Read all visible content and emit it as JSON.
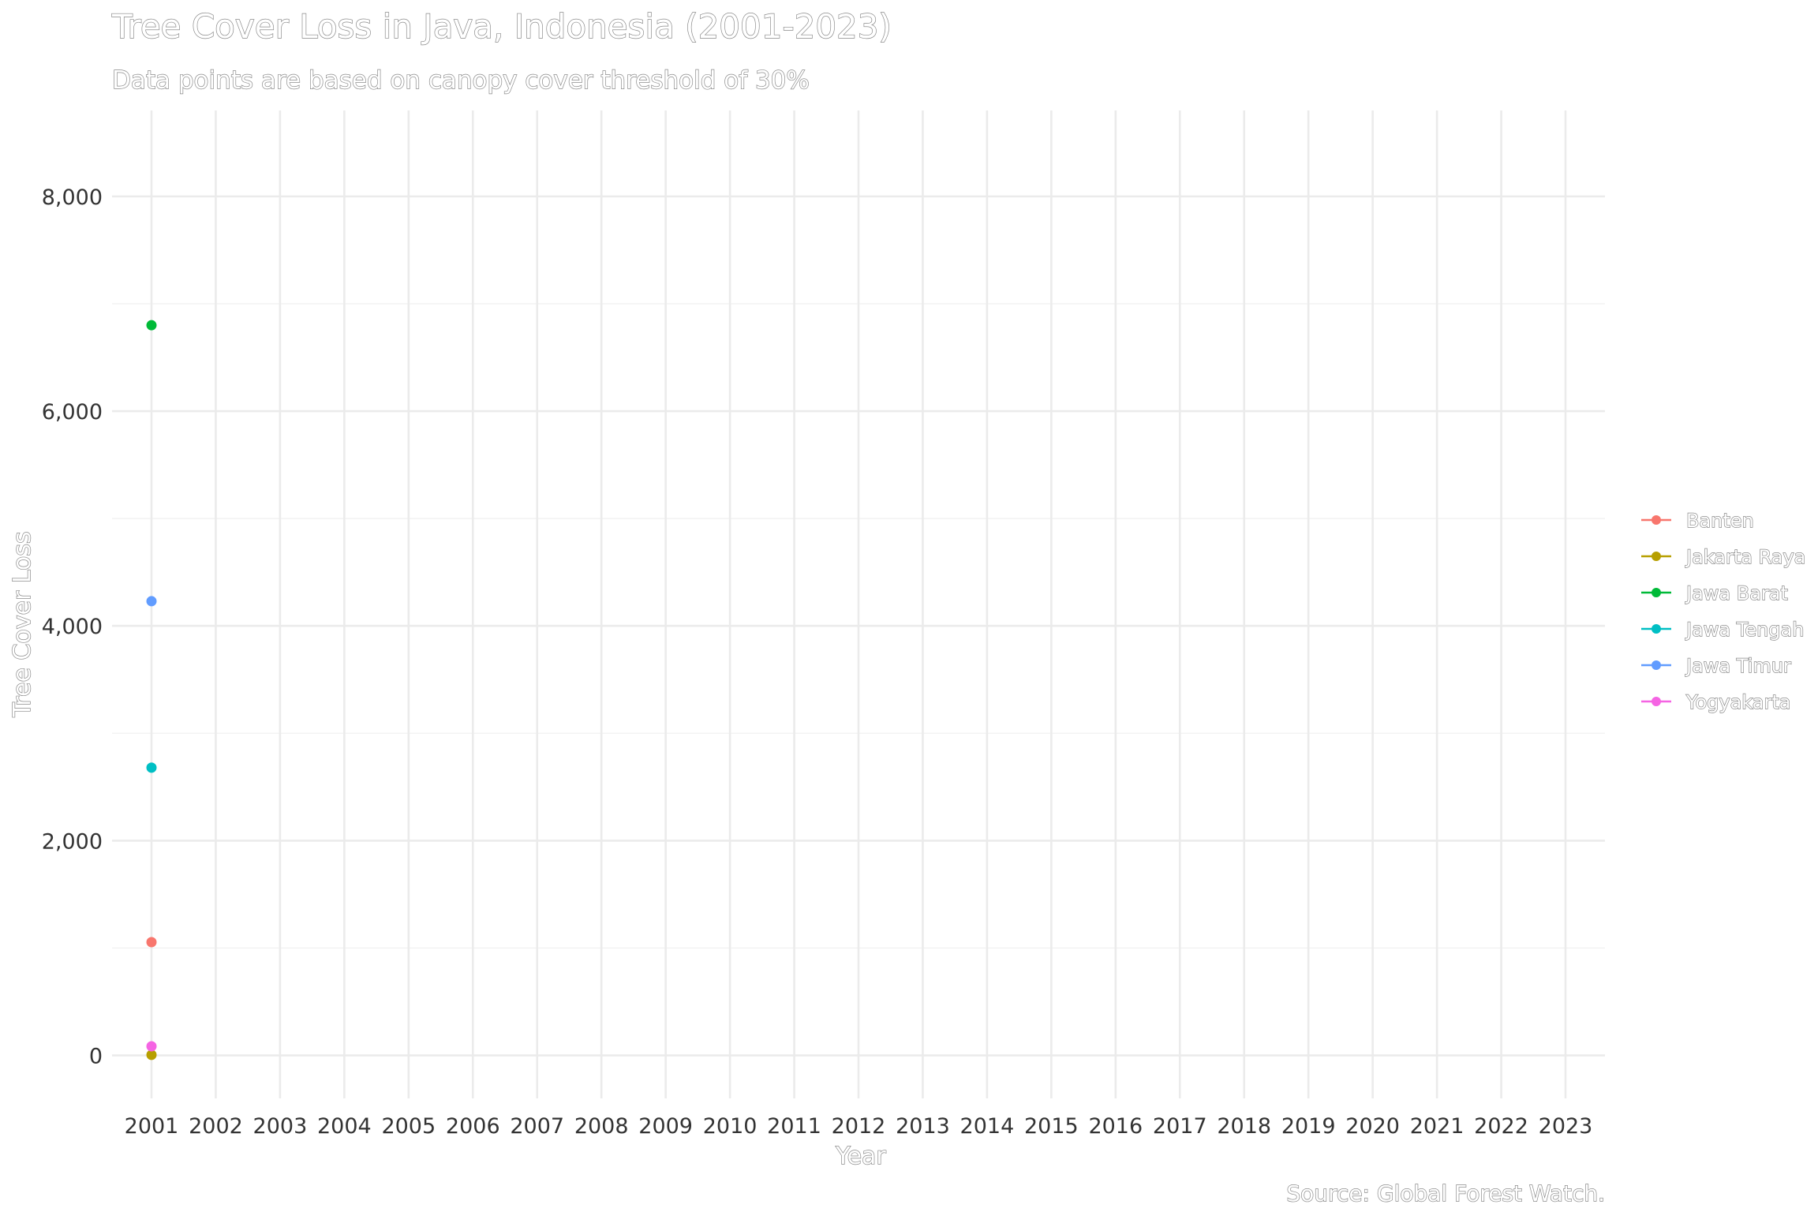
{
  "chart_data": {
    "type": "scatter",
    "title": "Tree Cover Loss in Java, Indonesia (2001-2023)",
    "subtitle": "Data points are based on canopy cover threshold of 30%",
    "xlabel": "Year",
    "ylabel": "Tree Cover Loss",
    "caption": "Source: Global Forest Watch.",
    "x_ticks": [
      "2001",
      "2002",
      "2003",
      "2004",
      "2005",
      "2006",
      "2007",
      "2008",
      "2009",
      "2010",
      "2011",
      "2012",
      "2013",
      "2014",
      "2015",
      "2016",
      "2017",
      "2018",
      "2019",
      "2020",
      "2021",
      "2022",
      "2023"
    ],
    "y_ticks": [
      0,
      2000,
      4000,
      6000,
      8000
    ],
    "y_tick_labels": [
      "0",
      "2,000",
      "4,000",
      "6,000",
      "8,000"
    ],
    "xlim": [
      2001,
      2023
    ],
    "ylim": [
      -400,
      8800
    ],
    "grid": true,
    "legend_position": "right",
    "series": [
      {
        "name": "Banten",
        "color": "#F8766D",
        "points": [
          {
            "x": 2001,
            "y": 1055
          }
        ]
      },
      {
        "name": "Jakarta Raya",
        "color": "#B79F00",
        "points": [
          {
            "x": 2001,
            "y": 5
          }
        ]
      },
      {
        "name": "Jawa Barat",
        "color": "#00BA38",
        "points": [
          {
            "x": 2001,
            "y": 6800
          }
        ]
      },
      {
        "name": "Jawa Tengah",
        "color": "#00BFC4",
        "points": [
          {
            "x": 2001,
            "y": 2680
          }
        ]
      },
      {
        "name": "Jawa Timur",
        "color": "#619CFF",
        "points": [
          {
            "x": 2001,
            "y": 4230
          }
        ]
      },
      {
        "name": "Yogyakarta",
        "color": "#F564E3",
        "points": [
          {
            "x": 2001,
            "y": 85
          }
        ]
      }
    ]
  }
}
